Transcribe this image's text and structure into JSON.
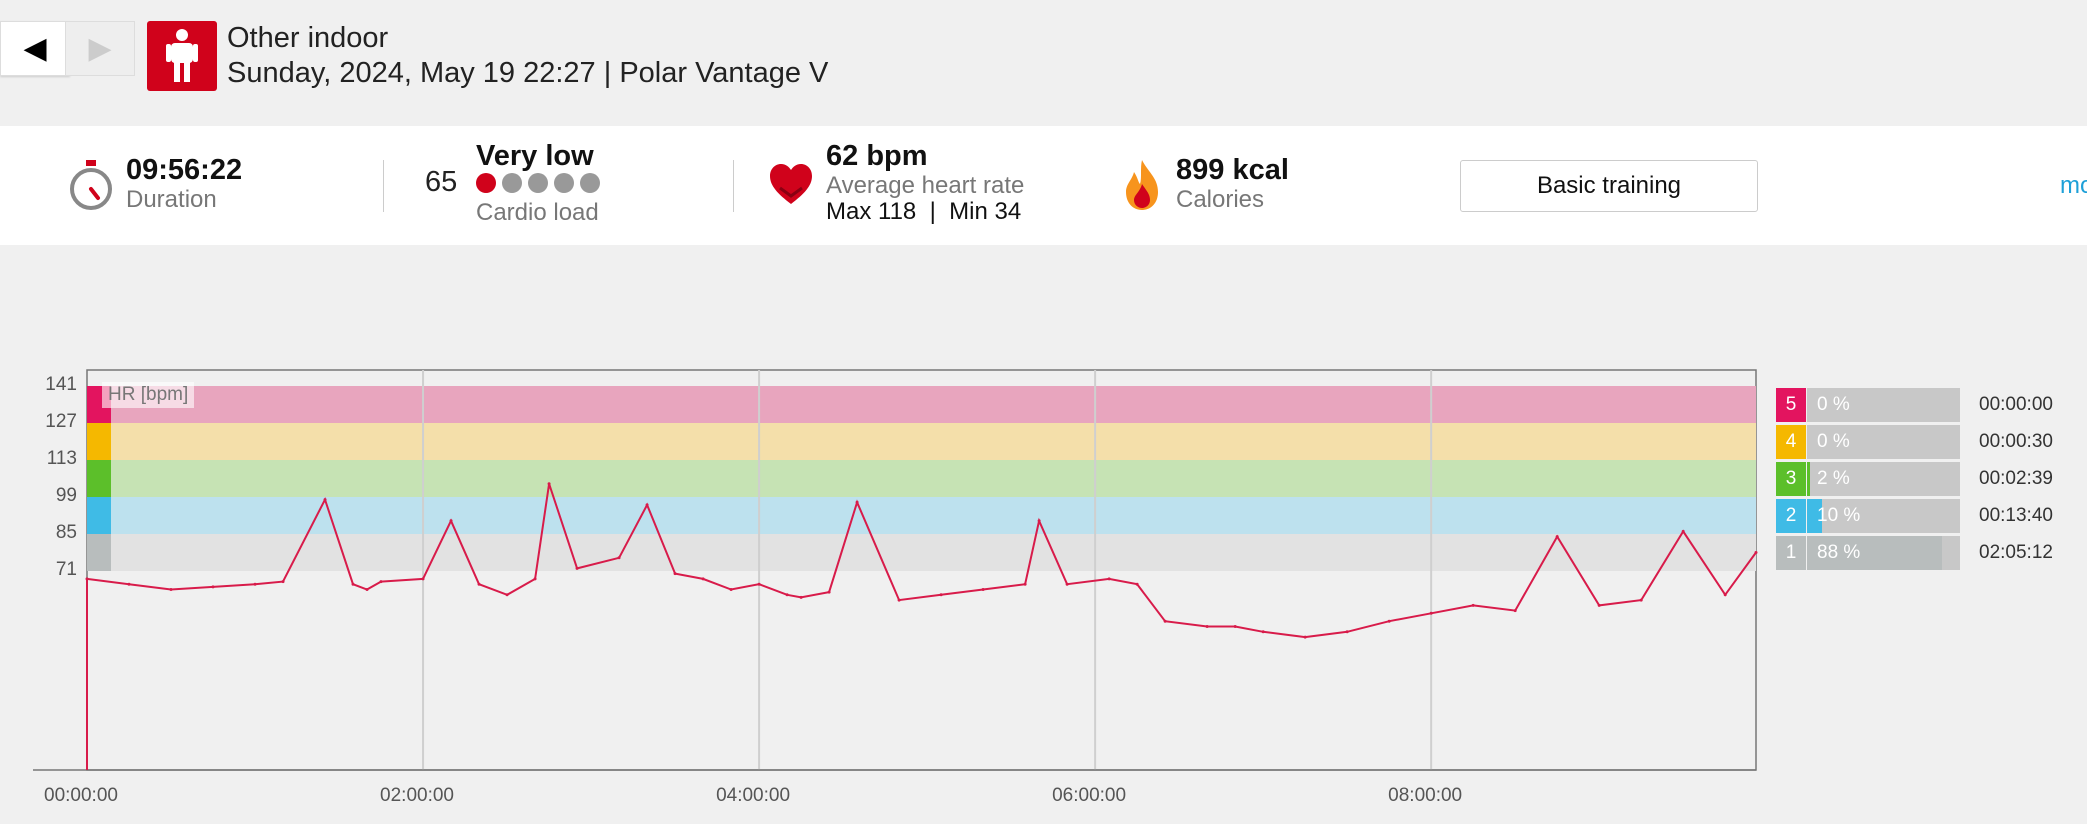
{
  "header": {
    "prev_symbol": "◀",
    "next_symbol": "▶",
    "title": "Other indoor",
    "subtitle": "Sunday, 2024, May 19 22:27 | Polar Vantage V",
    "sport_icon": "person-icon",
    "brand_color": "#d0021b"
  },
  "stats": {
    "duration_value": "09:56:22",
    "duration_label": "Duration",
    "cardio_value": "65",
    "cardio_level": "Very low",
    "cardio_label": "Cardio load",
    "cardio_dots_active": 1,
    "cardio_dots_total": 5,
    "hr_value": "62 bpm",
    "hr_label": "Average heart rate",
    "hr_minmax": "Max 118  |  Min 34",
    "calories_value": "899 kcal",
    "calories_label": "Calories",
    "basic_training_label": "Basic training",
    "more_label": "mo"
  },
  "chart_data": {
    "type": "line",
    "legend_label": "HR [bpm]",
    "ylabel": "",
    "xlabel": "",
    "y_ticks": [
      141,
      127,
      113,
      99,
      85,
      71
    ],
    "x_ticks": [
      "00:00:00",
      "02:00:00",
      "04:00:00",
      "06:00:00",
      "08:00:00"
    ],
    "zones": [
      {
        "zone": 5,
        "from": 127,
        "to": 141,
        "color": "#e8a5be",
        "chip": "#e3145f"
      },
      {
        "zone": 4,
        "from": 113,
        "to": 127,
        "color": "#f4dfaa",
        "chip": "#f5b800"
      },
      {
        "zone": 3,
        "from": 99,
        "to": 113,
        "color": "#c6e3b4",
        "chip": "#5cbf2a"
      },
      {
        "zone": 2,
        "from": 85,
        "to": 99,
        "color": "#bde1ee",
        "chip": "#3fbbe6"
      },
      {
        "zone": 1,
        "from": 71,
        "to": 85,
        "color": "#e2e2e2",
        "chip": "#b8bdbd"
      }
    ],
    "series": [
      {
        "color": "#d81b4a",
        "x_minutes": [
          0,
          15,
          30,
          45,
          60,
          70,
          85,
          95,
          100,
          105,
          120,
          130,
          140,
          150,
          160,
          165,
          175,
          190,
          200,
          210,
          220,
          230,
          240,
          250,
          255,
          265,
          275,
          290,
          305,
          320,
          335,
          340,
          350,
          365,
          375,
          385,
          400,
          410,
          420,
          435,
          450,
          465,
          480,
          495,
          510,
          525,
          540,
          555,
          570,
          585,
          596
        ],
        "values": [
          68,
          66,
          64,
          65,
          66,
          67,
          98,
          66,
          64,
          67,
          68,
          90,
          66,
          62,
          68,
          104,
          72,
          76,
          96,
          70,
          68,
          64,
          66,
          62,
          61,
          63,
          97,
          60,
          62,
          64,
          66,
          90,
          66,
          68,
          66,
          52,
          50,
          50,
          48,
          46,
          48,
          52,
          55,
          58,
          56,
          84,
          58,
          60,
          86,
          62,
          78
        ]
      }
    ]
  },
  "zones_summary": [
    {
      "zone": "5",
      "percent": "0 %",
      "fill": 0.0,
      "time": "00:00:00",
      "color": "#e3145f"
    },
    {
      "zone": "4",
      "percent": "0 %",
      "fill": 0.0,
      "time": "00:00:30",
      "color": "#f5b800"
    },
    {
      "zone": "3",
      "percent": "2 %",
      "fill": 0.02,
      "time": "00:02:39",
      "color": "#5cbf2a"
    },
    {
      "zone": "2",
      "percent": "10 %",
      "fill": 0.1,
      "time": "00:13:40",
      "color": "#3fbbe6"
    },
    {
      "zone": "1",
      "percent": "88 %",
      "fill": 0.88,
      "time": "02:05:12",
      "color": "#b8bdbd"
    }
  ]
}
